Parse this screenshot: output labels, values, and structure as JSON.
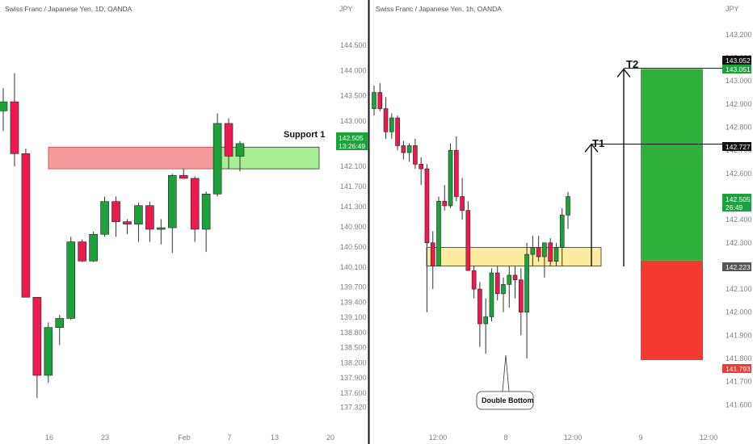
{
  "colors": {
    "up": "#1aa33a",
    "down": "#f0184f",
    "wick": "#333333",
    "resistance_fill": "#f59a9a",
    "support_fill": "#a6ef92",
    "zone_fill": "#fbeca0",
    "profit": "#2eb03a",
    "loss": "#f23a32",
    "price_tag": "#1aa33a",
    "dark_tag": "#111111",
    "gray_tag": "#555555",
    "loss_tag": "#f23a32",
    "divider": "#111111"
  },
  "left_panel": {
    "title": "Swiss Franc / Japanese Yen, 1D, OANDA",
    "currency": "JPY",
    "price_tag": "142.505",
    "countdown": "13:26:49",
    "annotation": "Support 1"
  },
  "right_panel": {
    "title": "Swiss Franc / Japanese Yen, 1h, OANDA",
    "currency": "JPY",
    "price_tag": "142.505",
    "countdown": "26:49",
    "annotation_t1": "T1",
    "annotation_t2": "T2",
    "annotation_pattern": "Double Bottom",
    "tag_t2_a": "143.052",
    "tag_t2_b": "143.051",
    "tag_t1": "142.727",
    "tag_entry": "142.223",
    "tag_stop": "141.793"
  },
  "chart_data": [
    {
      "type": "candlestick",
      "title": "Swiss Franc / Japanese Yen, 1D, OANDA",
      "ylabel": "JPY",
      "ylim": [
        137.1,
        145.0
      ],
      "y_ticks": [
        137.32,
        137.6,
        137.9,
        138.2,
        138.5,
        138.8,
        139.1,
        139.4,
        139.7,
        140.1,
        140.5,
        140.9,
        141.3,
        141.7,
        142.1,
        142.5,
        143.0,
        143.5,
        144.0,
        144.5
      ],
      "x_ticks": [
        "16",
        "23",
        "Feb",
        "7",
        "13",
        "20"
      ],
      "candles": [
        {
          "o": 143.2,
          "h": 143.65,
          "l": 142.8,
          "c": 143.38
        },
        {
          "o": 143.38,
          "h": 143.95,
          "l": 142.1,
          "c": 142.35
        },
        {
          "o": 142.35,
          "h": 142.45,
          "l": 139.5,
          "c": 139.5
        },
        {
          "o": 139.5,
          "h": 139.5,
          "l": 137.5,
          "c": 137.95
        },
        {
          "o": 137.95,
          "h": 139.0,
          "l": 137.8,
          "c": 138.9
        },
        {
          "o": 138.9,
          "h": 139.15,
          "l": 138.55,
          "c": 139.08
        },
        {
          "o": 139.08,
          "h": 140.7,
          "l": 139.05,
          "c": 140.6
        },
        {
          "o": 140.6,
          "h": 140.65,
          "l": 140.2,
          "c": 140.22
        },
        {
          "o": 140.22,
          "h": 140.8,
          "l": 140.2,
          "c": 140.75
        },
        {
          "o": 140.75,
          "h": 141.5,
          "l": 140.7,
          "c": 141.4
        },
        {
          "o": 141.4,
          "h": 141.5,
          "l": 140.7,
          "c": 141.0
        },
        {
          "o": 141.0,
          "h": 141.05,
          "l": 140.75,
          "c": 140.95
        },
        {
          "o": 140.95,
          "h": 141.38,
          "l": 140.6,
          "c": 141.32
        },
        {
          "o": 141.32,
          "h": 141.4,
          "l": 140.6,
          "c": 140.85
        },
        {
          "o": 140.85,
          "h": 141.05,
          "l": 140.55,
          "c": 140.88
        },
        {
          "o": 140.88,
          "h": 141.95,
          "l": 140.38,
          "c": 141.92
        },
        {
          "o": 141.92,
          "h": 142.05,
          "l": 141.85,
          "c": 141.86
        },
        {
          "o": 141.86,
          "h": 141.9,
          "l": 140.6,
          "c": 140.85
        },
        {
          "o": 140.85,
          "h": 141.6,
          "l": 140.4,
          "c": 141.55
        },
        {
          "o": 141.55,
          "h": 143.15,
          "l": 141.5,
          "c": 142.95
        },
        {
          "o": 142.95,
          "h": 143.05,
          "l": 142.05,
          "c": 142.3
        },
        {
          "o": 142.3,
          "h": 142.6,
          "l": 142.0,
          "c": 142.55
        }
      ],
      "zones": [
        {
          "kind": "resistance",
          "top": 142.48,
          "bottom": 142.05
        },
        {
          "kind": "support",
          "top": 142.48,
          "bottom": 142.05
        }
      ],
      "current_price": 142.505
    },
    {
      "type": "candlestick",
      "title": "Swiss Franc / Japanese Yen, 1h, OANDA",
      "ylabel": "JPY",
      "ylim": [
        141.5,
        143.28
      ],
      "y_ticks": [
        141.6,
        141.7,
        141.8,
        141.9,
        142.0,
        142.1,
        142.2,
        142.3,
        142.4,
        142.5,
        142.6,
        142.7,
        142.8,
        142.9,
        143.0,
        143.1,
        143.2
      ],
      "x_ticks": [
        "12:00",
        "8",
        "12:00",
        "9",
        "12:00"
      ],
      "candles": [
        {
          "o": 142.88,
          "h": 142.98,
          "l": 142.85,
          "c": 142.95
        },
        {
          "o": 142.95,
          "h": 142.99,
          "l": 142.87,
          "c": 142.88
        },
        {
          "o": 142.88,
          "h": 142.93,
          "l": 142.75,
          "c": 142.78
        },
        {
          "o": 142.78,
          "h": 142.86,
          "l": 142.75,
          "c": 142.84
        },
        {
          "o": 142.84,
          "h": 142.85,
          "l": 142.7,
          "c": 142.72
        },
        {
          "o": 142.72,
          "h": 142.74,
          "l": 142.66,
          "c": 142.69
        },
        {
          "o": 142.69,
          "h": 142.73,
          "l": 142.65,
          "c": 142.72
        },
        {
          "o": 142.72,
          "h": 142.75,
          "l": 142.62,
          "c": 142.64
        },
        {
          "o": 142.64,
          "h": 142.67,
          "l": 142.55,
          "c": 142.62
        },
        {
          "o": 142.62,
          "h": 142.64,
          "l": 142.0,
          "c": 142.3
        },
        {
          "o": 142.3,
          "h": 142.35,
          "l": 142.1,
          "c": 142.2
        },
        {
          "o": 142.2,
          "h": 142.5,
          "l": 142.2,
          "c": 142.48
        },
        {
          "o": 142.48,
          "h": 142.55,
          "l": 142.44,
          "c": 142.46
        },
        {
          "o": 142.46,
          "h": 142.73,
          "l": 142.45,
          "c": 142.7
        },
        {
          "o": 142.7,
          "h": 142.76,
          "l": 142.48,
          "c": 142.5
        },
        {
          "o": 142.5,
          "h": 142.58,
          "l": 142.4,
          "c": 142.44
        },
        {
          "o": 142.44,
          "h": 142.48,
          "l": 142.18,
          "c": 142.18
        },
        {
          "o": 142.18,
          "h": 142.2,
          "l": 142.06,
          "c": 142.1
        },
        {
          "o": 142.1,
          "h": 142.13,
          "l": 141.85,
          "c": 141.95
        },
        {
          "o": 141.95,
          "h": 142.06,
          "l": 141.82,
          "c": 141.98
        },
        {
          "o": 141.98,
          "h": 142.19,
          "l": 141.96,
          "c": 142.17
        },
        {
          "o": 142.17,
          "h": 142.2,
          "l": 142.05,
          "c": 142.08
        },
        {
          "o": 142.08,
          "h": 142.15,
          "l": 142.0,
          "c": 142.12
        },
        {
          "o": 142.12,
          "h": 142.2,
          "l": 142.02,
          "c": 142.16
        },
        {
          "o": 142.16,
          "h": 142.2,
          "l": 142.06,
          "c": 142.14
        },
        {
          "o": 142.14,
          "h": 142.19,
          "l": 141.9,
          "c": 142.0
        },
        {
          "o": 142.0,
          "h": 142.3,
          "l": 141.8,
          "c": 142.25
        },
        {
          "o": 142.25,
          "h": 142.33,
          "l": 142.2,
          "c": 142.28
        },
        {
          "o": 142.28,
          "h": 142.33,
          "l": 142.22,
          "c": 142.24
        },
        {
          "o": 142.24,
          "h": 142.3,
          "l": 142.15,
          "c": 142.3
        },
        {
          "o": 142.3,
          "h": 142.32,
          "l": 142.2,
          "c": 142.22
        },
        {
          "o": 142.22,
          "h": 142.3,
          "l": 142.2,
          "c": 142.28
        },
        {
          "o": 142.28,
          "h": 142.45,
          "l": 142.2,
          "c": 142.42
        },
        {
          "o": 142.42,
          "h": 142.52,
          "l": 142.36,
          "c": 142.5
        }
      ],
      "zones": [
        {
          "kind": "double_bottom",
          "top": 142.28,
          "bottom": 142.2
        }
      ],
      "targets": {
        "t1": 142.727,
        "t2": 143.051,
        "entry": 142.223,
        "stop": 141.793
      },
      "current_price": 142.505
    }
  ]
}
